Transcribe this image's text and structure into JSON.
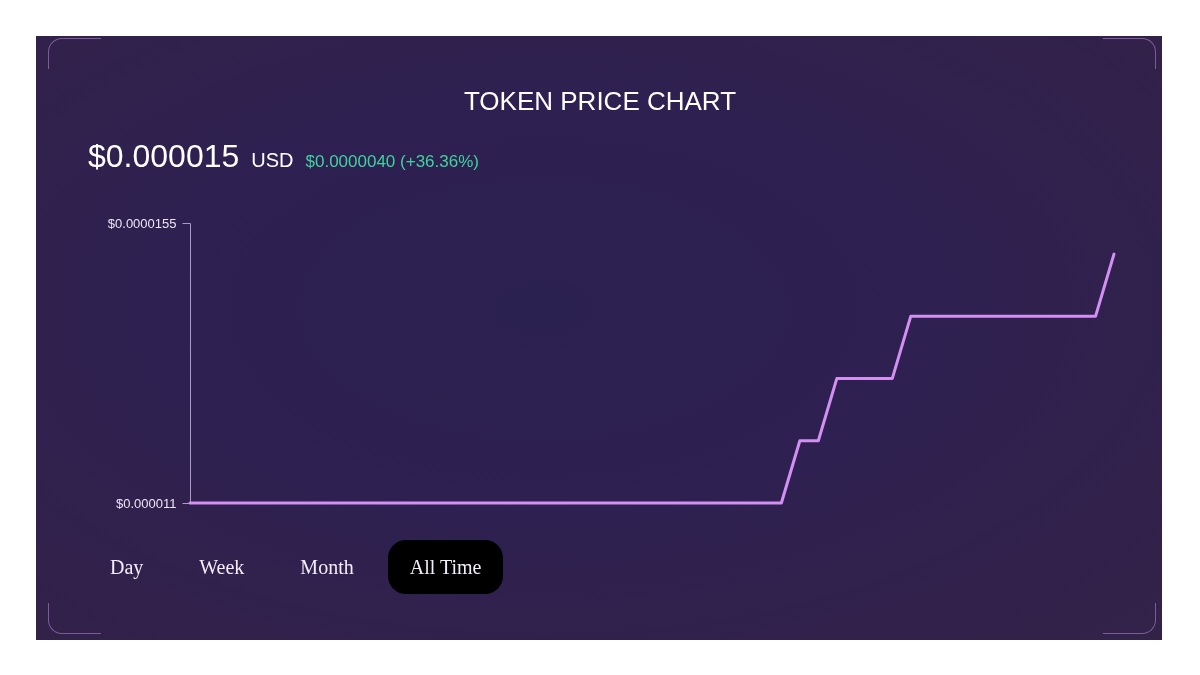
{
  "chart_data": {
    "type": "line",
    "title": "TOKEN PRICE CHART",
    "subtitle": "$0.000015 USD",
    "annotations": [
      "$0.0000040 (+36.36%)",
      "Day",
      "Week",
      "Month",
      "All Time"
    ],
    "categories": [
      null,
      null,
      null,
      null,
      null,
      null,
      null,
      null,
      null,
      null,
      null,
      null,
      null,
      null,
      null,
      null,
      null,
      null,
      null,
      null,
      null,
      null,
      null,
      null,
      null,
      null,
      null,
      null,
      null,
      null,
      null,
      null,
      null,
      null,
      null,
      null,
      null,
      null,
      null,
      null,
      null,
      null,
      null,
      null,
      null,
      null,
      null,
      null,
      null,
      null,
      null
    ],
    "values": [
      1.1e-05,
      1.1e-05,
      1.1e-05,
      1.1e-05,
      1.1e-05,
      1.1e-05,
      1.1e-05,
      1.1e-05,
      1.1e-05,
      1.1e-05,
      1.1e-05,
      1.1e-05,
      1.1e-05,
      1.1e-05,
      1.1e-05,
      1.1e-05,
      1.1e-05,
      1.1e-05,
      1.1e-05,
      1.1e-05,
      1.1e-05,
      1.1e-05,
      1.1e-05,
      1.1e-05,
      1.1e-05,
      1.1e-05,
      1.1e-05,
      1.1e-05,
      1.1e-05,
      1.1e-05,
      1.1e-05,
      1.1e-05,
      1.1e-05,
      1.2e-05,
      1.2e-05,
      1.3e-05,
      1.3e-05,
      1.3e-05,
      1.3e-05,
      1.4e-05,
      1.4e-05,
      1.4e-05,
      1.4e-05,
      1.4e-05,
      1.4e-05,
      1.4e-05,
      1.4e-05,
      1.4e-05,
      1.4e-05,
      1.4e-05,
      1.5e-05
    ],
    "color": "#d38ff2",
    "ylim": [
      1.1e-05,
      1.55e-05
    ],
    "yticks": [
      {
        "value": 1.1e-05,
        "label": "$0.000011"
      },
      {
        "value": 1.55e-05,
        "label": "$0.0000155"
      }
    ],
    "tick_labels": "y"
  }
}
